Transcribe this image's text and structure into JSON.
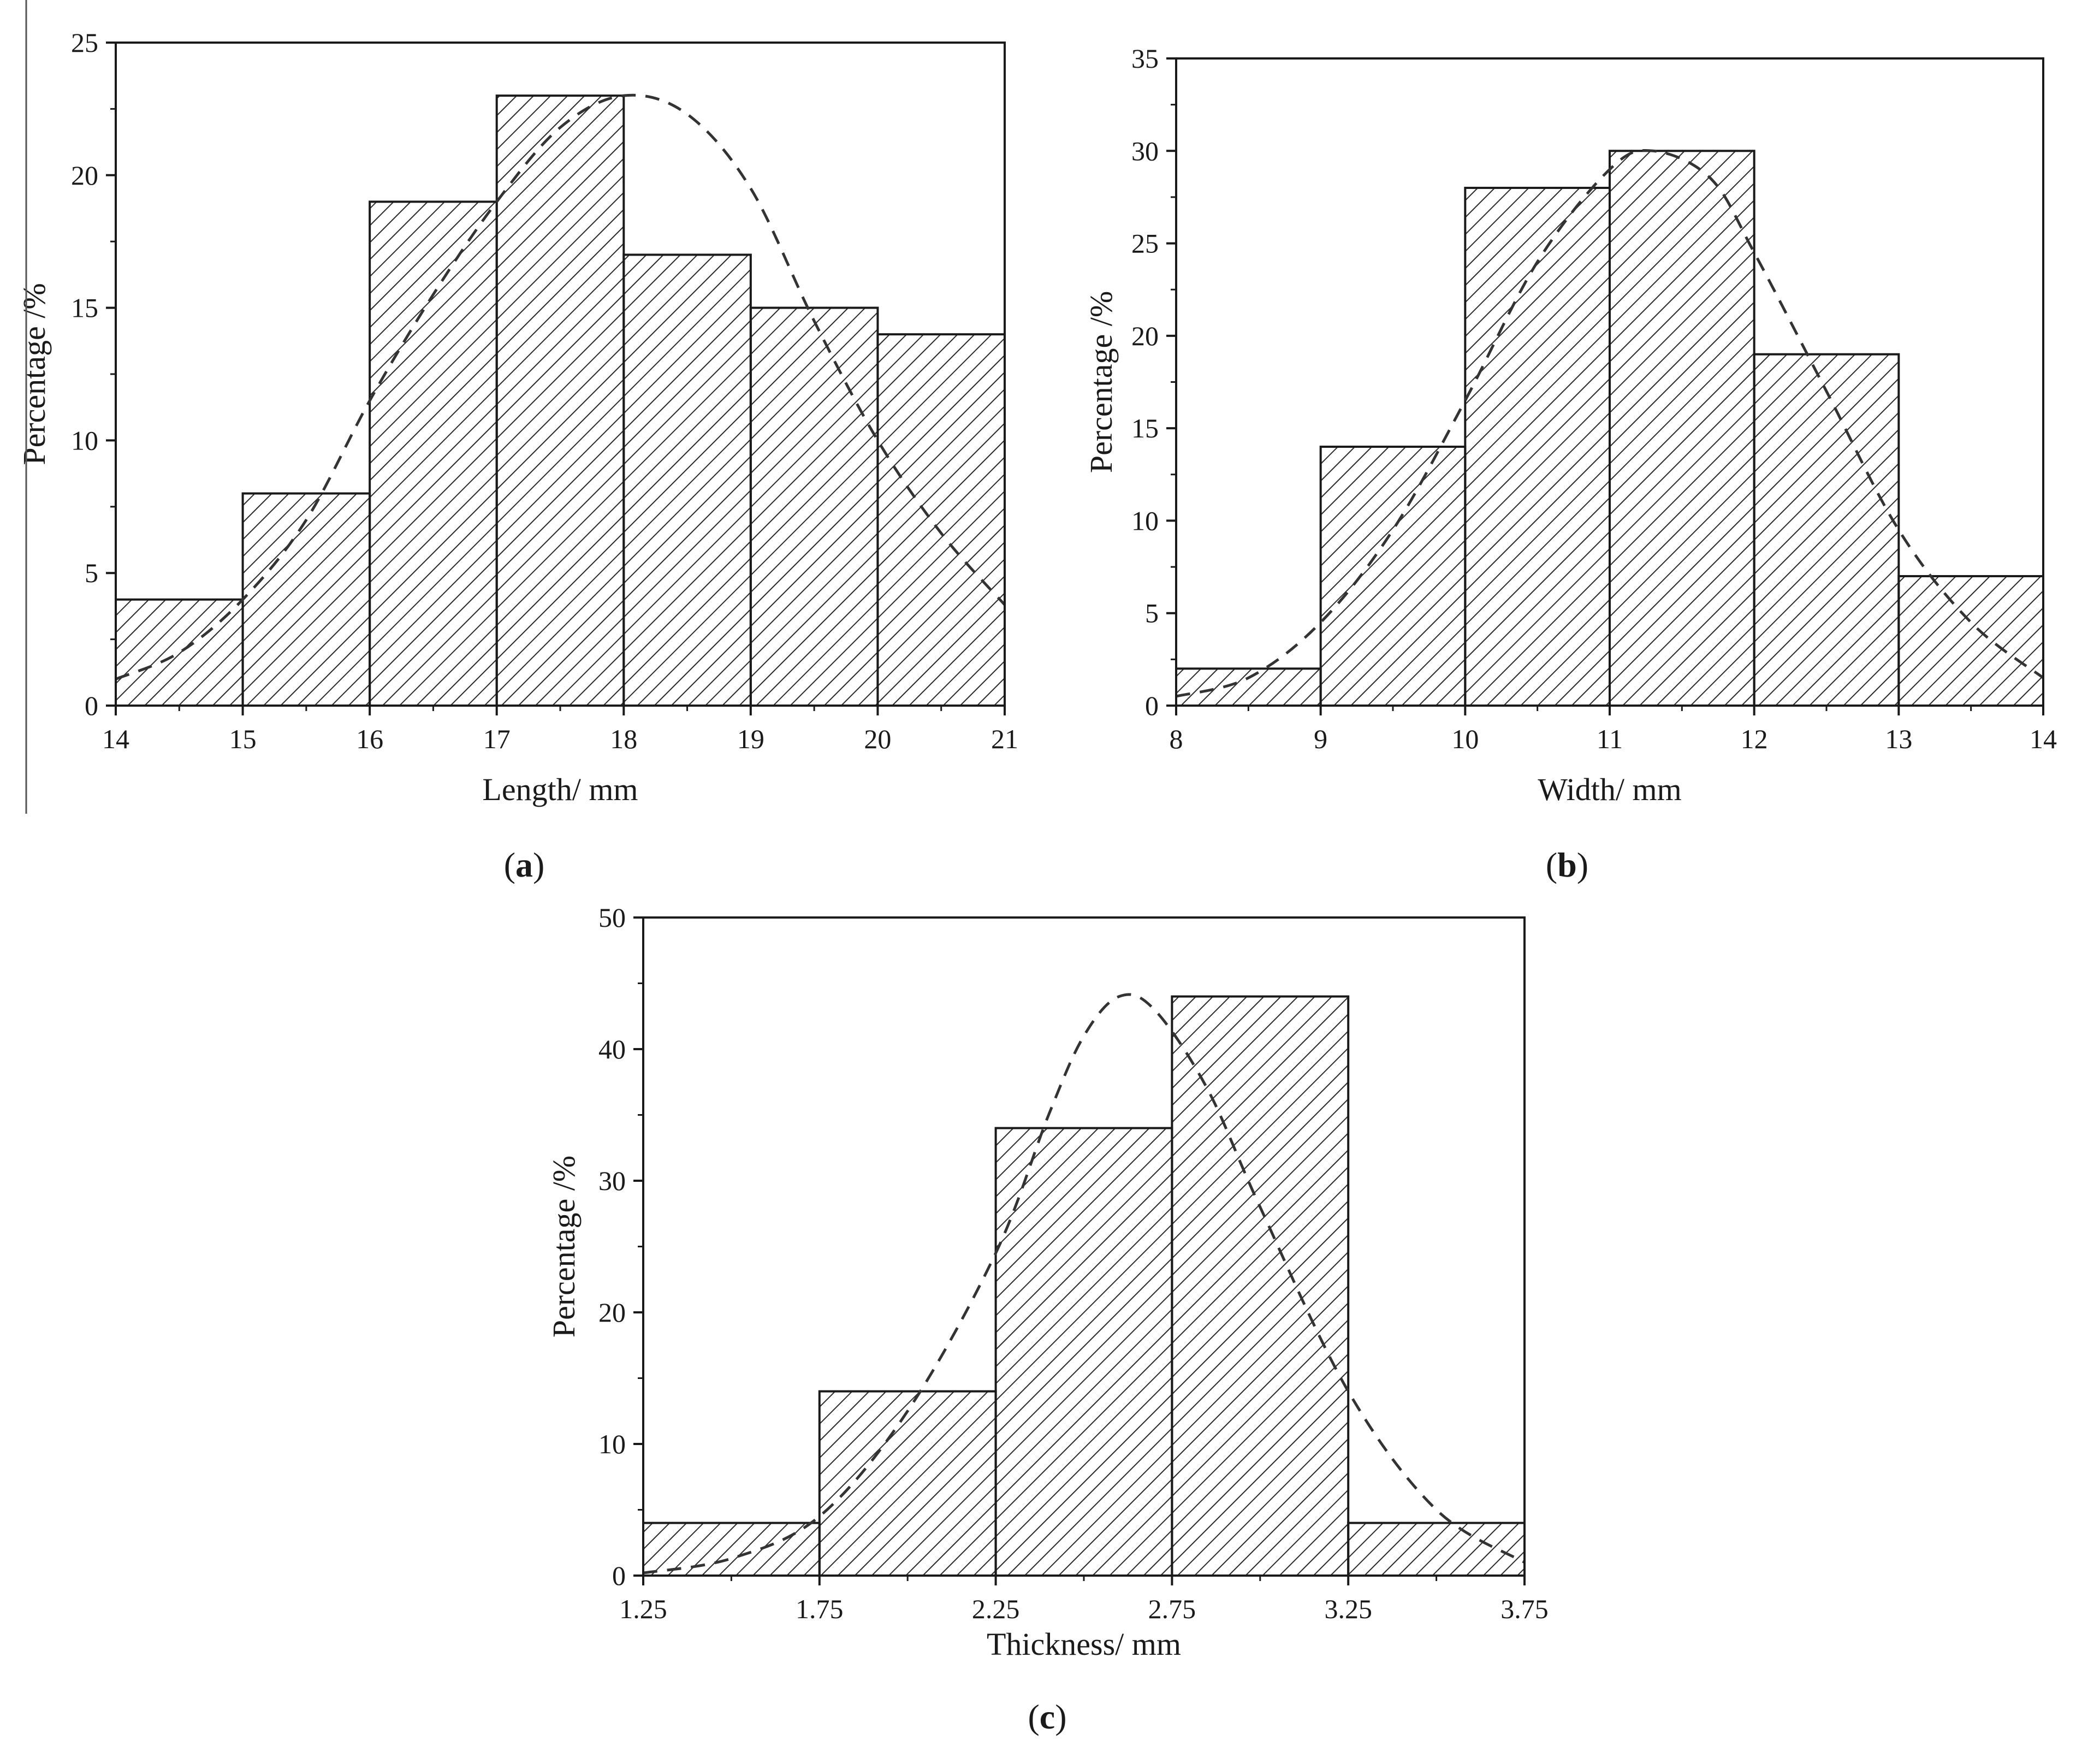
{
  "chart_data": [
    {
      "id": "a",
      "panel_label": "a",
      "type": "bar",
      "bin_edges": [
        14,
        15,
        16,
        17,
        18,
        19,
        20,
        21
      ],
      "values": [
        4,
        8,
        19,
        23,
        17,
        15,
        14
      ],
      "xlabel": "Length/ mm",
      "ylabel": "Percentage /%",
      "xlim": [
        14,
        21
      ],
      "ylim": [
        0,
        25
      ],
      "xticks": [
        14,
        15,
        16,
        17,
        18,
        19,
        20,
        21
      ],
      "yticks": [
        0,
        5,
        10,
        15,
        20,
        25
      ],
      "fit_curve": {
        "style": "dashed",
        "points": [
          [
            14.0,
            1.0
          ],
          [
            14.5,
            2.0
          ],
          [
            15.0,
            4.0
          ],
          [
            15.5,
            7.0
          ],
          [
            16.0,
            11.5
          ],
          [
            16.5,
            15.5
          ],
          [
            17.0,
            19.0
          ],
          [
            17.5,
            21.8
          ],
          [
            18.0,
            23.0
          ],
          [
            18.5,
            22.3
          ],
          [
            19.0,
            19.5
          ],
          [
            19.5,
            14.5
          ],
          [
            20.0,
            10.0
          ],
          [
            20.5,
            6.5
          ],
          [
            21.0,
            3.8
          ]
        ]
      }
    },
    {
      "id": "b",
      "panel_label": "b",
      "type": "bar",
      "bin_edges": [
        8,
        9,
        10,
        11,
        12,
        13,
        14
      ],
      "values": [
        2,
        14,
        28,
        30,
        19,
        7
      ],
      "xlabel": "Width/ mm",
      "ylabel": "Percentage /%",
      "xlim": [
        8,
        14
      ],
      "ylim": [
        0,
        35
      ],
      "xticks": [
        8,
        9,
        10,
        11,
        12,
        13,
        14
      ],
      "yticks": [
        0,
        5,
        10,
        15,
        20,
        25,
        30,
        35
      ],
      "fit_curve": {
        "style": "dashed",
        "points": [
          [
            8.0,
            0.5
          ],
          [
            8.5,
            1.5
          ],
          [
            9.0,
            4.5
          ],
          [
            9.5,
            9.5
          ],
          [
            10.0,
            16.5
          ],
          [
            10.5,
            24.0
          ],
          [
            11.0,
            29.0
          ],
          [
            11.3,
            30.0
          ],
          [
            11.7,
            28.5
          ],
          [
            12.0,
            24.5
          ],
          [
            12.5,
            17.0
          ],
          [
            13.0,
            9.5
          ],
          [
            13.5,
            4.5
          ],
          [
            14.0,
            1.5
          ]
        ]
      }
    },
    {
      "id": "c",
      "panel_label": "c",
      "type": "bar",
      "bin_edges": [
        1.25,
        1.75,
        2.25,
        2.75,
        3.25,
        3.75
      ],
      "values": [
        4,
        14,
        34,
        44,
        4
      ],
      "xlabel": "Thickness/ mm",
      "ylabel": "Percentage /%",
      "xlim": [
        1.25,
        3.75
      ],
      "ylim": [
        0,
        50
      ],
      "xticks": [
        "1.25",
        "1.75",
        "2.25",
        "2.75",
        "3.25",
        "3.75"
      ],
      "yticks": [
        0,
        10,
        20,
        30,
        40,
        50
      ],
      "fit_curve": {
        "style": "dashed",
        "points": [
          [
            1.25,
            0.2
          ],
          [
            1.5,
            1.3
          ],
          [
            1.75,
            4.5
          ],
          [
            2.0,
            12.5
          ],
          [
            2.25,
            24.5
          ],
          [
            2.4,
            35.0
          ],
          [
            2.5,
            41.0
          ],
          [
            2.6,
            44.0
          ],
          [
            2.7,
            43.0
          ],
          [
            2.85,
            37.0
          ],
          [
            3.0,
            28.0
          ],
          [
            3.25,
            14.0
          ],
          [
            3.5,
            5.0
          ],
          [
            3.75,
            1.0
          ]
        ]
      }
    }
  ],
  "labels": {
    "a": {
      "open": "(",
      "letter": "a",
      "close": ")"
    },
    "b": {
      "open": "(",
      "letter": "b",
      "close": ")"
    },
    "c": {
      "open": "(",
      "letter": "c",
      "close": ")"
    }
  }
}
